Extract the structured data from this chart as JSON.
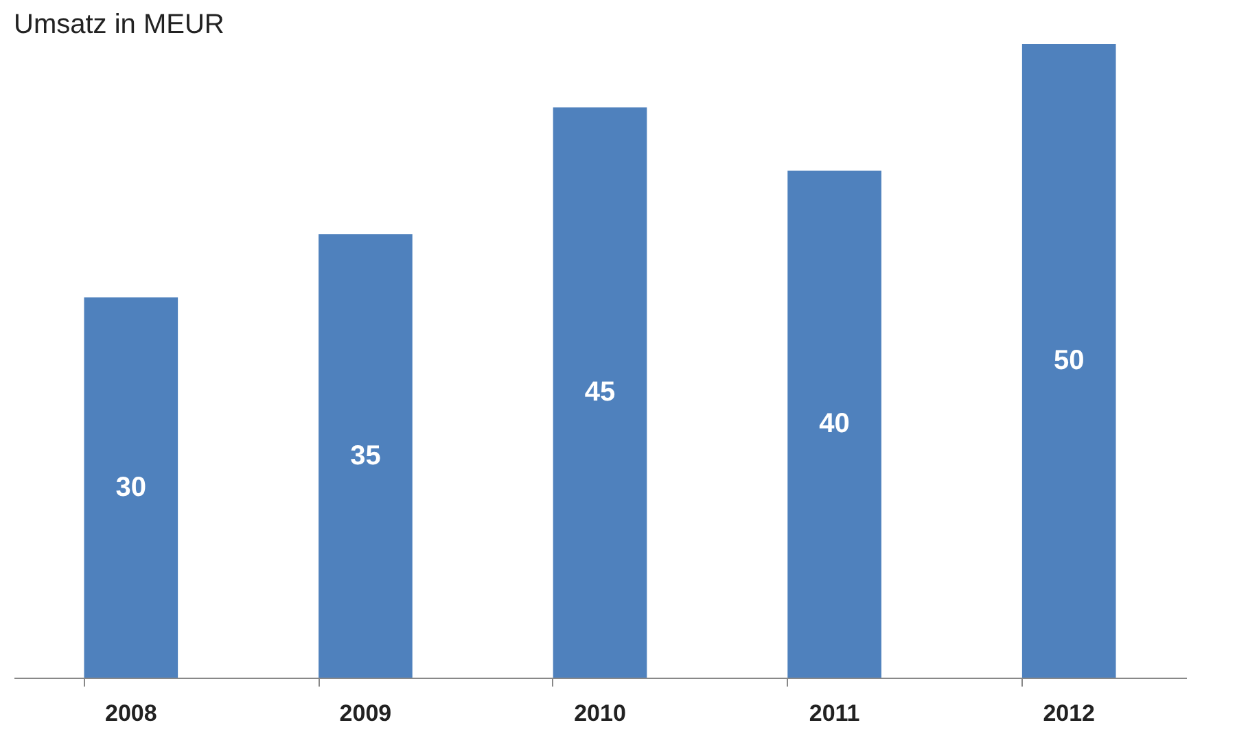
{
  "chart_data": {
    "type": "bar",
    "title": "Umsatz in MEUR",
    "categories": [
      "2008",
      "2009",
      "2010",
      "2011",
      "2012"
    ],
    "values": [
      30,
      35,
      45,
      40,
      50
    ],
    "color": "#4f81bd",
    "ylim": [
      0,
      50
    ],
    "data_labels": true,
    "grid": false,
    "tick_labels": "x"
  }
}
